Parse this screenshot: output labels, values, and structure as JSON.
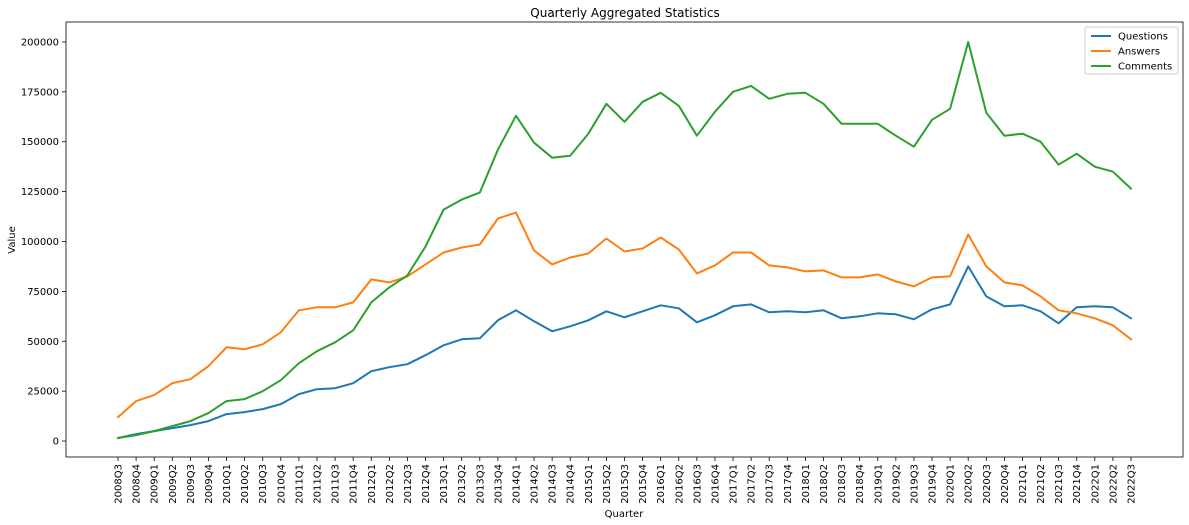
{
  "chart_data": {
    "type": "line",
    "title": "Quarterly Aggregated Statistics",
    "xlabel": "Quarter",
    "ylabel": "Value",
    "ylim": [
      -8000,
      210000
    ],
    "yticks": [
      0,
      25000,
      50000,
      75000,
      100000,
      125000,
      150000,
      175000,
      200000
    ],
    "grid": false,
    "legend_position": "upper-right",
    "categories": [
      "2008Q3",
      "2008Q4",
      "2009Q1",
      "2009Q2",
      "2009Q3",
      "2009Q4",
      "2010Q1",
      "2010Q2",
      "2010Q3",
      "2010Q4",
      "2011Q1",
      "2011Q2",
      "2011Q3",
      "2011Q4",
      "2012Q1",
      "2012Q2",
      "2012Q3",
      "2012Q4",
      "2013Q1",
      "2013Q2",
      "2013Q3",
      "2013Q4",
      "2014Q1",
      "2014Q2",
      "2014Q3",
      "2014Q4",
      "2015Q1",
      "2015Q2",
      "2015Q3",
      "2015Q4",
      "2016Q1",
      "2016Q2",
      "2016Q3",
      "2016Q4",
      "2017Q1",
      "2017Q2",
      "2017Q3",
      "2017Q4",
      "2018Q1",
      "2018Q2",
      "2018Q3",
      "2018Q4",
      "2019Q1",
      "2019Q2",
      "2019Q3",
      "2019Q4",
      "2020Q1",
      "2020Q2",
      "2020Q3",
      "2020Q4",
      "2021Q1",
      "2021Q2",
      "2021Q3",
      "2021Q4",
      "2022Q1",
      "2022Q2",
      "2022Q3"
    ],
    "series": [
      {
        "name": "Questions",
        "color": "#1f77b4",
        "values": [
          1500,
          3500,
          5000,
          6500,
          8000,
          10000,
          13500,
          14500,
          16000,
          18500,
          23500,
          26000,
          26500,
          29000,
          35000,
          37000,
          38500,
          43000,
          48000,
          51000,
          51500,
          60500,
          65500,
          60000,
          55000,
          57500,
          60500,
          65000,
          62000,
          65000,
          68000,
          66500,
          59500,
          63000,
          67500,
          68500,
          64500,
          65000,
          64500,
          65500,
          61500,
          62500,
          64000,
          63500,
          61000,
          66000,
          68500,
          87500,
          72500,
          67500,
          68000,
          65000,
          59000,
          67000,
          67500,
          67000,
          61500
        ]
      },
      {
        "name": "Answers",
        "color": "#ff7f0e",
        "values": [
          12000,
          20000,
          23000,
          29000,
          31000,
          37500,
          47000,
          46000,
          48500,
          54500,
          65500,
          67000,
          67000,
          69500,
          81000,
          79500,
          82500,
          88500,
          94500,
          97000,
          98500,
          111500,
          114500,
          95500,
          88500,
          92000,
          94000,
          101500,
          95000,
          96500,
          102000,
          96000,
          84000,
          88000,
          94500,
          94500,
          88000,
          87000,
          85000,
          85500,
          82000,
          82000,
          83500,
          80000,
          77500,
          82000,
          82500,
          103500,
          87500,
          79500,
          78000,
          72500,
          65500,
          64000,
          61500,
          58000,
          51000
        ]
      },
      {
        "name": "Comments",
        "color": "#2ca02c",
        "values": [
          1500,
          3000,
          5000,
          7500,
          10000,
          14000,
          20000,
          21000,
          25000,
          30500,
          39000,
          45000,
          49500,
          55500,
          69500,
          77000,
          83000,
          97500,
          116000,
          121000,
          124500,
          146000,
          163000,
          149500,
          142000,
          143000,
          154000,
          169000,
          160000,
          170000,
          174500,
          168000,
          153000,
          165000,
          175000,
          178000,
          171500,
          174000,
          174500,
          169000,
          159000,
          159000,
          159000,
          153000,
          147500,
          161000,
          166500,
          200000,
          164500,
          153000,
          154000,
          150000,
          138500,
          144000,
          137500,
          135000,
          126500
        ]
      }
    ]
  }
}
